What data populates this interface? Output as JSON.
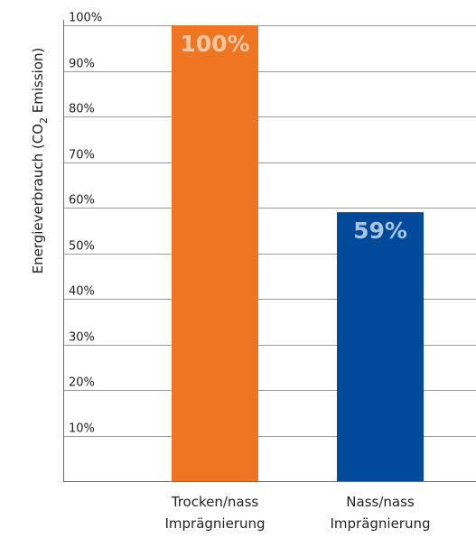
{
  "chart_data": {
    "type": "bar",
    "categories": [
      [
        "Trocken/nass",
        "Imprägnierung"
      ],
      [
        "Nass/nass",
        "Imprägnierung"
      ]
    ],
    "values": [
      100,
      59
    ],
    "data_labels": [
      "100%",
      "59%"
    ],
    "bar_colors": [
      "#EE7623",
      "#004A99"
    ],
    "data_label_colors": [
      "#FBC7A1",
      "#A9C3E4"
    ],
    "ylabel_prefix": "Energieverbrauch (CO",
    "ylabel_subscript": "2",
    "ylabel_suffix": " Emission)",
    "yticks": [
      "10%",
      "20%",
      "30%",
      "40%",
      "50%",
      "60%",
      "70%",
      "80%",
      "90%",
      "100%"
    ],
    "ylim": [
      0,
      100
    ],
    "grid": true,
    "legend": "none"
  }
}
